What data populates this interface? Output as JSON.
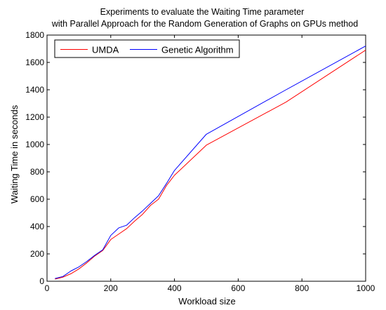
{
  "chart_data": {
    "type": "line",
    "title": [
      "Experiments to evaluate the Waiting Time parameter",
      "with Parallel Approach for the Random Generation of Graphs on GPUs method"
    ],
    "xlabel": "Workload size",
    "ylabel": "Waiting Time in seconds",
    "xlim": [
      0,
      1000
    ],
    "ylim": [
      0,
      1800
    ],
    "xticks": [
      0,
      200,
      400,
      600,
      800,
      1000
    ],
    "yticks": [
      0,
      200,
      400,
      600,
      800,
      1000,
      1200,
      1400,
      1600,
      1800
    ],
    "grid": false,
    "legend_position": "top-left",
    "series": [
      {
        "name": "UMDA",
        "color": "#ff0000",
        "x": [
          25,
          50,
          75,
          100,
          125,
          150,
          175,
          200,
          225,
          250,
          275,
          300,
          325,
          350,
          375,
          400,
          500,
          750,
          1000
        ],
        "y": [
          15,
          30,
          55,
          90,
          135,
          185,
          225,
          305,
          345,
          385,
          440,
          490,
          555,
          600,
          700,
          775,
          995,
          1310,
          1690
        ]
      },
      {
        "name": "Genetic Algorithm",
        "color": "#0000ff",
        "x": [
          25,
          50,
          75,
          100,
          125,
          150,
          175,
          200,
          225,
          250,
          275,
          300,
          325,
          350,
          375,
          400,
          500,
          750,
          1000
        ],
        "y": [
          20,
          35,
          75,
          105,
          145,
          190,
          230,
          335,
          390,
          410,
          465,
          515,
          570,
          625,
          715,
          810,
          1075,
          1400,
          1720
        ]
      }
    ]
  }
}
